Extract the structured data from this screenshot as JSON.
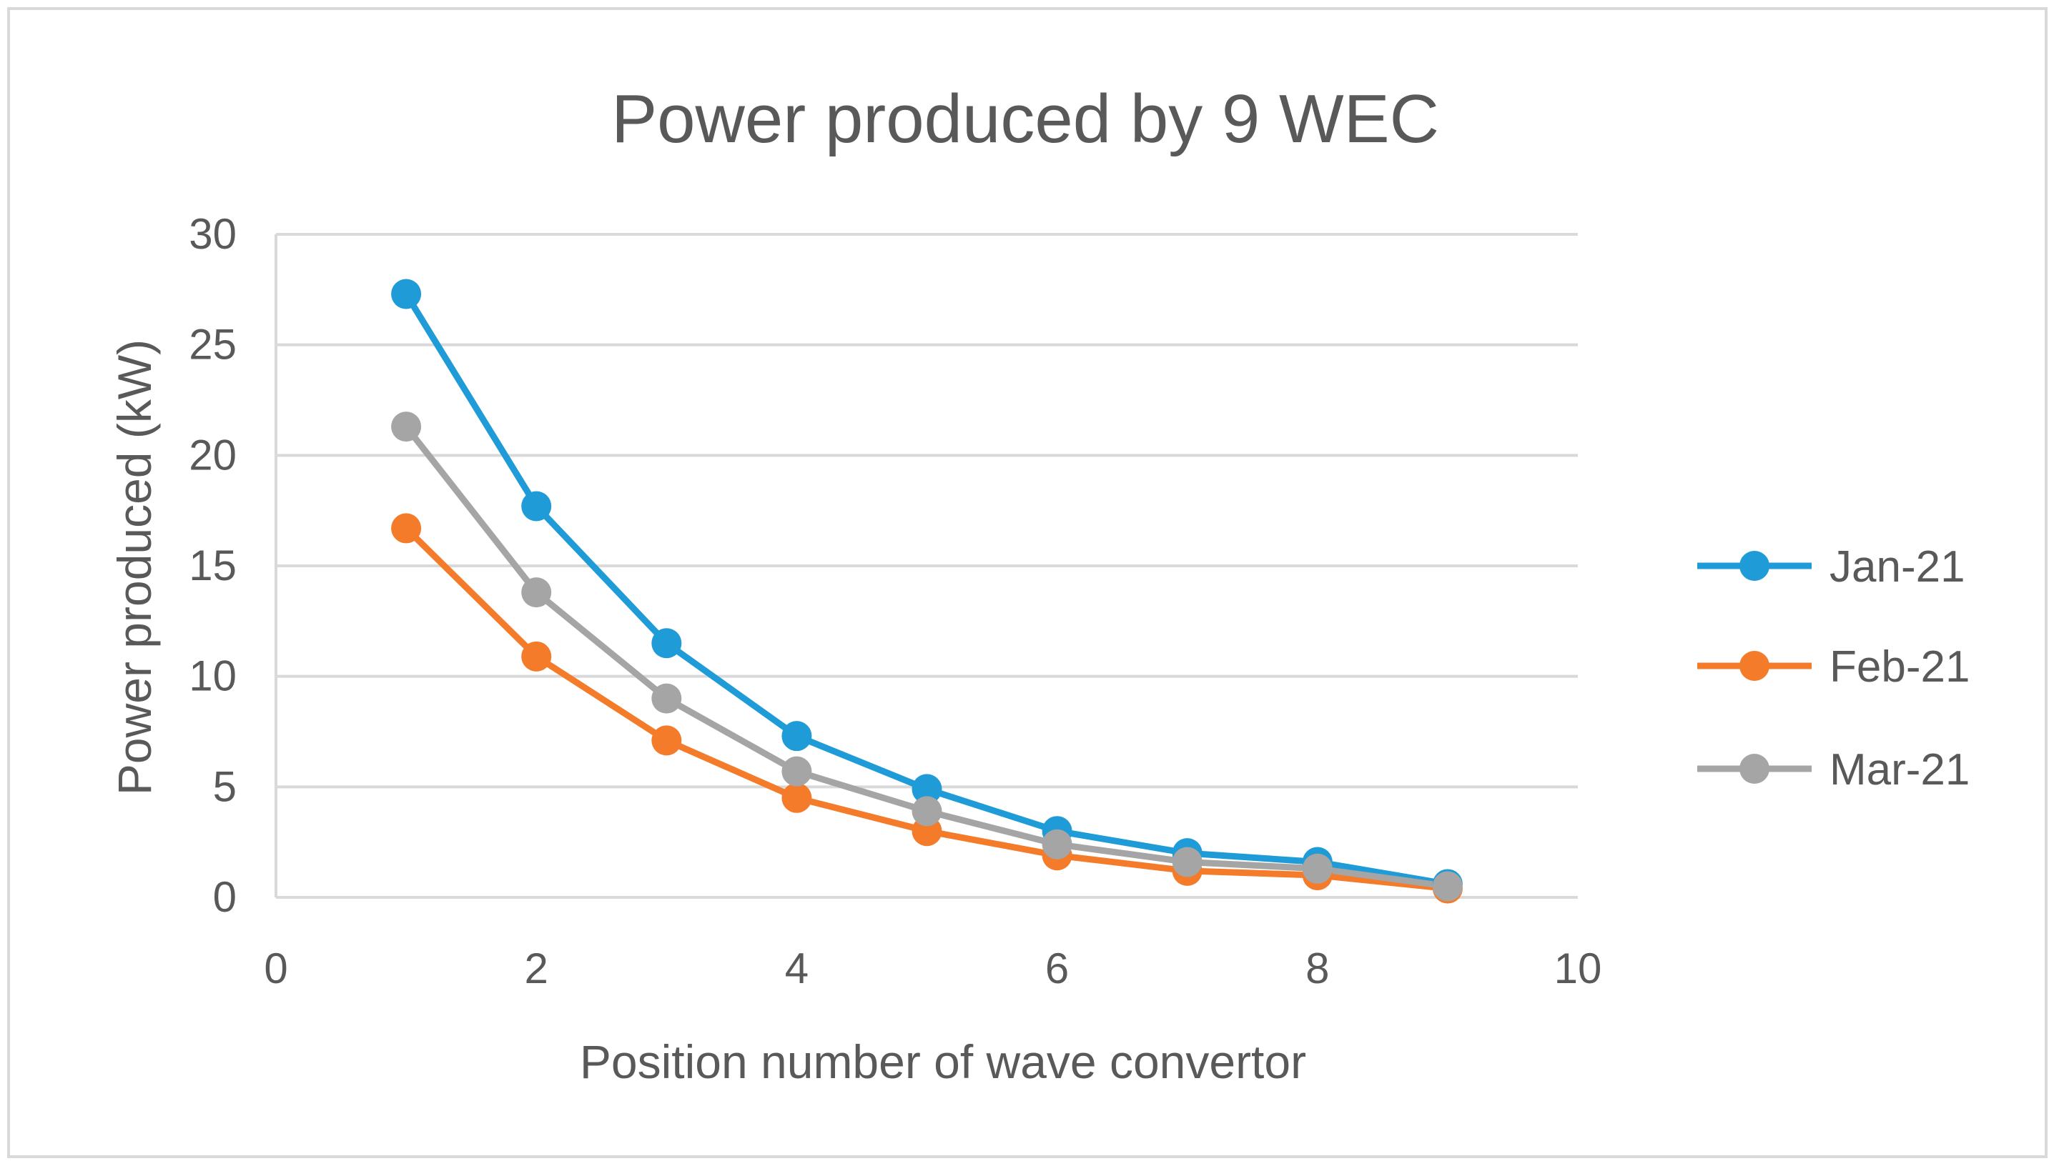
{
  "chart_data": {
    "type": "scatter",
    "title": "Power produced by 9 WEC",
    "xlabel": "Position number of wave convertor",
    "ylabel": "Power produced (kW)",
    "xlim": [
      0,
      10
    ],
    "ylim": [
      0,
      30
    ],
    "xticks": [
      0,
      2,
      4,
      6,
      8,
      10
    ],
    "yticks": [
      0,
      5,
      10,
      15,
      20,
      25,
      30
    ],
    "grid": "horizontal",
    "legend_position": "right",
    "x": [
      1,
      2,
      3,
      4,
      5,
      6,
      7,
      8,
      9
    ],
    "series": [
      {
        "name": "Jan-21",
        "color": "#1F9BD7",
        "values": [
          27.3,
          17.7,
          11.5,
          7.3,
          4.9,
          3.0,
          2.0,
          1.6,
          0.6
        ]
      },
      {
        "name": "Feb-21",
        "color": "#F47B2A",
        "values": [
          16.7,
          10.9,
          7.1,
          4.5,
          3.0,
          1.9,
          1.2,
          1.0,
          0.4
        ]
      },
      {
        "name": "Mar-21",
        "color": "#A5A5A5",
        "values": [
          21.3,
          13.8,
          9.0,
          5.7,
          3.9,
          2.4,
          1.6,
          1.3,
          0.5
        ]
      }
    ]
  }
}
